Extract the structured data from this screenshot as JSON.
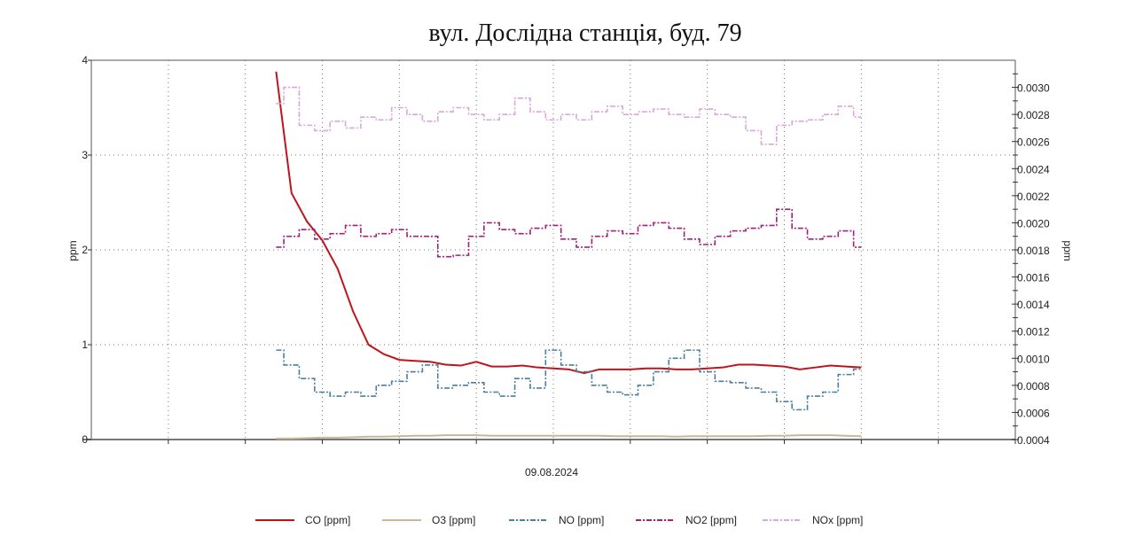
{
  "chart_data": {
    "type": "line",
    "title": "вул. Дослідна станція, буд. 79",
    "xlabel": "09.08.2024",
    "ylabel_left": "ppm",
    "ylabel_right": "ppm",
    "ylim_left": [
      0,
      4
    ],
    "yticks_left": [
      "0",
      "1",
      "2",
      "3",
      "4"
    ],
    "ylim_right": [
      0.0004,
      0.0032
    ],
    "yticks_right": [
      "0.0004",
      "0.0006",
      "0.0008",
      "0.0010",
      "0.0012",
      "0.0014",
      "0.0016",
      "0.0018",
      "0.0020",
      "0.0022",
      "0.0024",
      "0.0026",
      "0.0028",
      "0.0030"
    ],
    "xlim": [
      0,
      12
    ],
    "x_start": 2.4,
    "x_step": 0.2,
    "grid": true,
    "legend_position": "bottom",
    "series": [
      {
        "name": "CO [ppm]",
        "axis": "left",
        "color": "#c0141c",
        "style": "solid",
        "values": [
          3.88,
          2.6,
          2.3,
          2.1,
          1.8,
          1.35,
          1.0,
          0.9,
          0.84,
          0.83,
          0.82,
          0.79,
          0.78,
          0.82,
          0.77,
          0.77,
          0.78,
          0.76,
          0.75,
          0.74,
          0.7,
          0.74,
          0.74,
          0.74,
          0.75,
          0.75,
          0.74,
          0.74,
          0.75,
          0.76,
          0.79,
          0.79,
          0.78,
          0.77,
          0.74,
          0.76,
          0.78,
          0.77,
          0.76
        ]
      },
      {
        "name": "O3 [ppm]",
        "axis": "left",
        "color": "#c8b89a",
        "style": "solid",
        "values": [
          0.01,
          0.01,
          0.015,
          0.02,
          0.02,
          0.025,
          0.03,
          0.03,
          0.035,
          0.04,
          0.04,
          0.045,
          0.045,
          0.045,
          0.04,
          0.04,
          0.04,
          0.04,
          0.04,
          0.04,
          0.04,
          0.04,
          0.035,
          0.035,
          0.035,
          0.035,
          0.03,
          0.035,
          0.035,
          0.035,
          0.035,
          0.035,
          0.04,
          0.04,
          0.045,
          0.045,
          0.045,
          0.04,
          0.035
        ]
      },
      {
        "name": "NO [ppm]",
        "axis": "right",
        "color": "#4a7fa0",
        "style": "dashdot",
        "values": [
          0.00106,
          0.00095,
          0.00085,
          0.00075,
          0.00072,
          0.00075,
          0.00072,
          0.0008,
          0.00083,
          0.0009,
          0.00095,
          0.00078,
          0.0008,
          0.00082,
          0.00075,
          0.00072,
          0.00085,
          0.00078,
          0.00106,
          0.00095,
          0.0009,
          0.0008,
          0.00075,
          0.00073,
          0.0008,
          0.0009,
          0.001,
          0.00106,
          0.0009,
          0.00083,
          0.00082,
          0.00078,
          0.00075,
          0.00068,
          0.00062,
          0.00072,
          0.00075,
          0.00088,
          0.00092
        ]
      },
      {
        "name": "NO2 [ppm]",
        "axis": "right",
        "color": "#a0207a",
        "style": "dashdot",
        "values": [
          0.00182,
          0.0019,
          0.00195,
          0.00188,
          0.00192,
          0.00198,
          0.0019,
          0.00192,
          0.00195,
          0.0019,
          0.0019,
          0.00175,
          0.00176,
          0.0019,
          0.002,
          0.00195,
          0.00192,
          0.00196,
          0.00198,
          0.00188,
          0.00182,
          0.0019,
          0.00194,
          0.00192,
          0.00198,
          0.002,
          0.00196,
          0.00188,
          0.00184,
          0.0019,
          0.00194,
          0.00196,
          0.00198,
          0.0021,
          0.00196,
          0.00188,
          0.0019,
          0.00194,
          0.00182
        ]
      },
      {
        "name": "NOx [ppm]",
        "axis": "right",
        "color": "#d8a8d8",
        "style": "dashdot",
        "values": [
          0.00288,
          0.003,
          0.00272,
          0.00268,
          0.00275,
          0.0027,
          0.00278,
          0.00276,
          0.00285,
          0.0028,
          0.00275,
          0.00282,
          0.00285,
          0.0028,
          0.00276,
          0.0028,
          0.00292,
          0.00282,
          0.00276,
          0.0028,
          0.00276,
          0.00282,
          0.00286,
          0.0028,
          0.00282,
          0.00284,
          0.0028,
          0.00278,
          0.00284,
          0.0028,
          0.00278,
          0.00268,
          0.00258,
          0.00272,
          0.00275,
          0.00276,
          0.0028,
          0.00286,
          0.00278
        ]
      }
    ]
  }
}
